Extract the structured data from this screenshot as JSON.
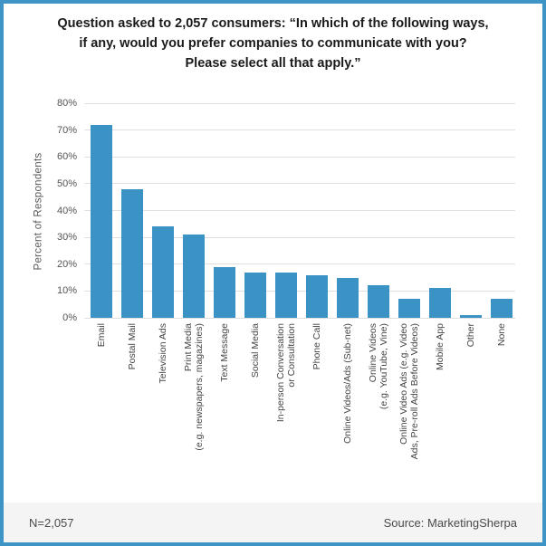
{
  "title": {
    "text": "Question asked to 2,057 consumers: “In which of the following ways,\nif any, would you prefer companies to communicate with you?\nPlease select all that apply.”"
  },
  "chart_data": {
    "type": "bar",
    "title": "Question asked to 2,057 consumers: “In which of the following ways, if any, would you prefer companies to communicate with you? Please select all that apply.”",
    "categories": [
      "Email",
      "Postal Mail",
      "Television Ads",
      "Print Media\n(e.g. newspapers, magazines)",
      "Text Message",
      "Social Media",
      "In-person Conversation\nor Consultation",
      "Phone Call",
      "Online Videos/Ads (Sub-net)",
      "Online Videos\n(e.g. YouTube, Vine)",
      "Online Video Ads (e.g. Video\nAds, Pre-roll Ads Before Videos)",
      "Mobile App",
      "Other",
      "None"
    ],
    "values": [
      72,
      48,
      34,
      31,
      19,
      17,
      17,
      16,
      15,
      12,
      7,
      11,
      1,
      7
    ],
    "xlabel": "",
    "ylabel": "Percent of Respondents",
    "ylim": [
      0,
      80
    ],
    "ytick_step": 10,
    "ytick_suffix": "%",
    "grid": true,
    "legend": "none",
    "bar_color": "#3b93c5"
  },
  "footer": {
    "sample_size": "N=2,057",
    "source": "Source: MarketingSherpa"
  },
  "colors": {
    "border": "#3e95c5",
    "bar": "#3b93c5",
    "gridline": "#e0e0e0",
    "footer_bg": "#f4f4f4",
    "axis_text": "#555555",
    "title_text": "#1a1a1a"
  }
}
